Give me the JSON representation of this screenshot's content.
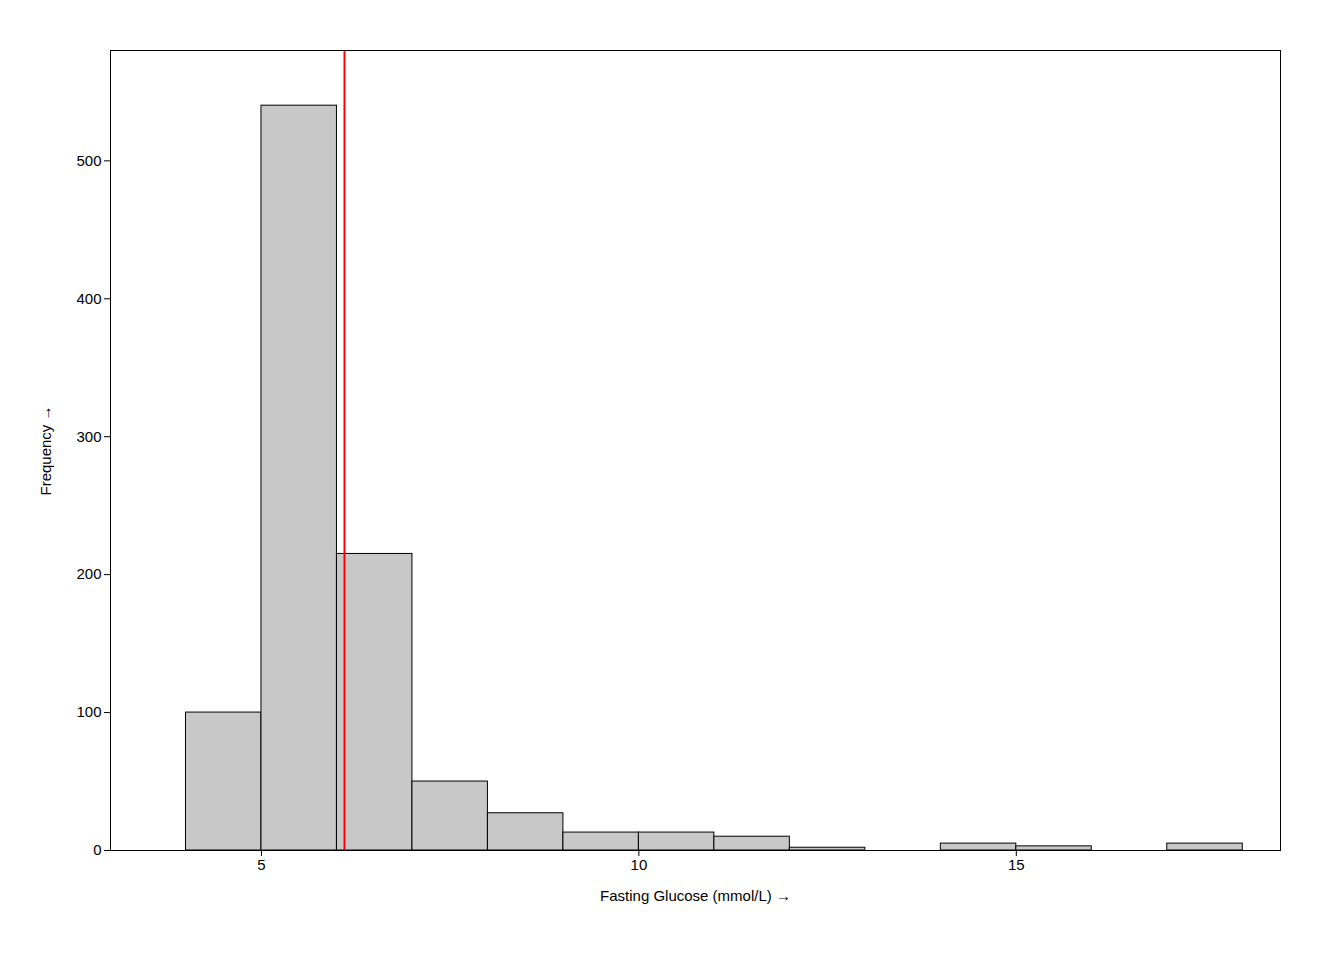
{
  "chart_data": {
    "type": "histogram",
    "bins": [
      3.0,
      4.0,
      5.0,
      6.0,
      7.0,
      8.0,
      9.0,
      10.0,
      11.0,
      12.0,
      13.0,
      14.0,
      15.0,
      16.0,
      17.0,
      18.0
    ],
    "values": [
      0,
      100,
      540,
      215,
      50,
      27,
      13,
      13,
      10,
      2,
      0,
      5,
      3,
      0,
      5
    ],
    "color": "#c8c8c8",
    "reference_lines": [
      {
        "x": 6.1,
        "color": "#ff0000"
      }
    ],
    "xlabel": "Fasting Glucose (mmol/L)",
    "ylabel": "Frequency",
    "xlim": [
      3.0,
      18.5
    ],
    "ylim": [
      0,
      580
    ],
    "xticks": [
      5,
      10,
      15
    ],
    "yticks": [
      0,
      100,
      200,
      300,
      400,
      500
    ],
    "grid": false
  }
}
